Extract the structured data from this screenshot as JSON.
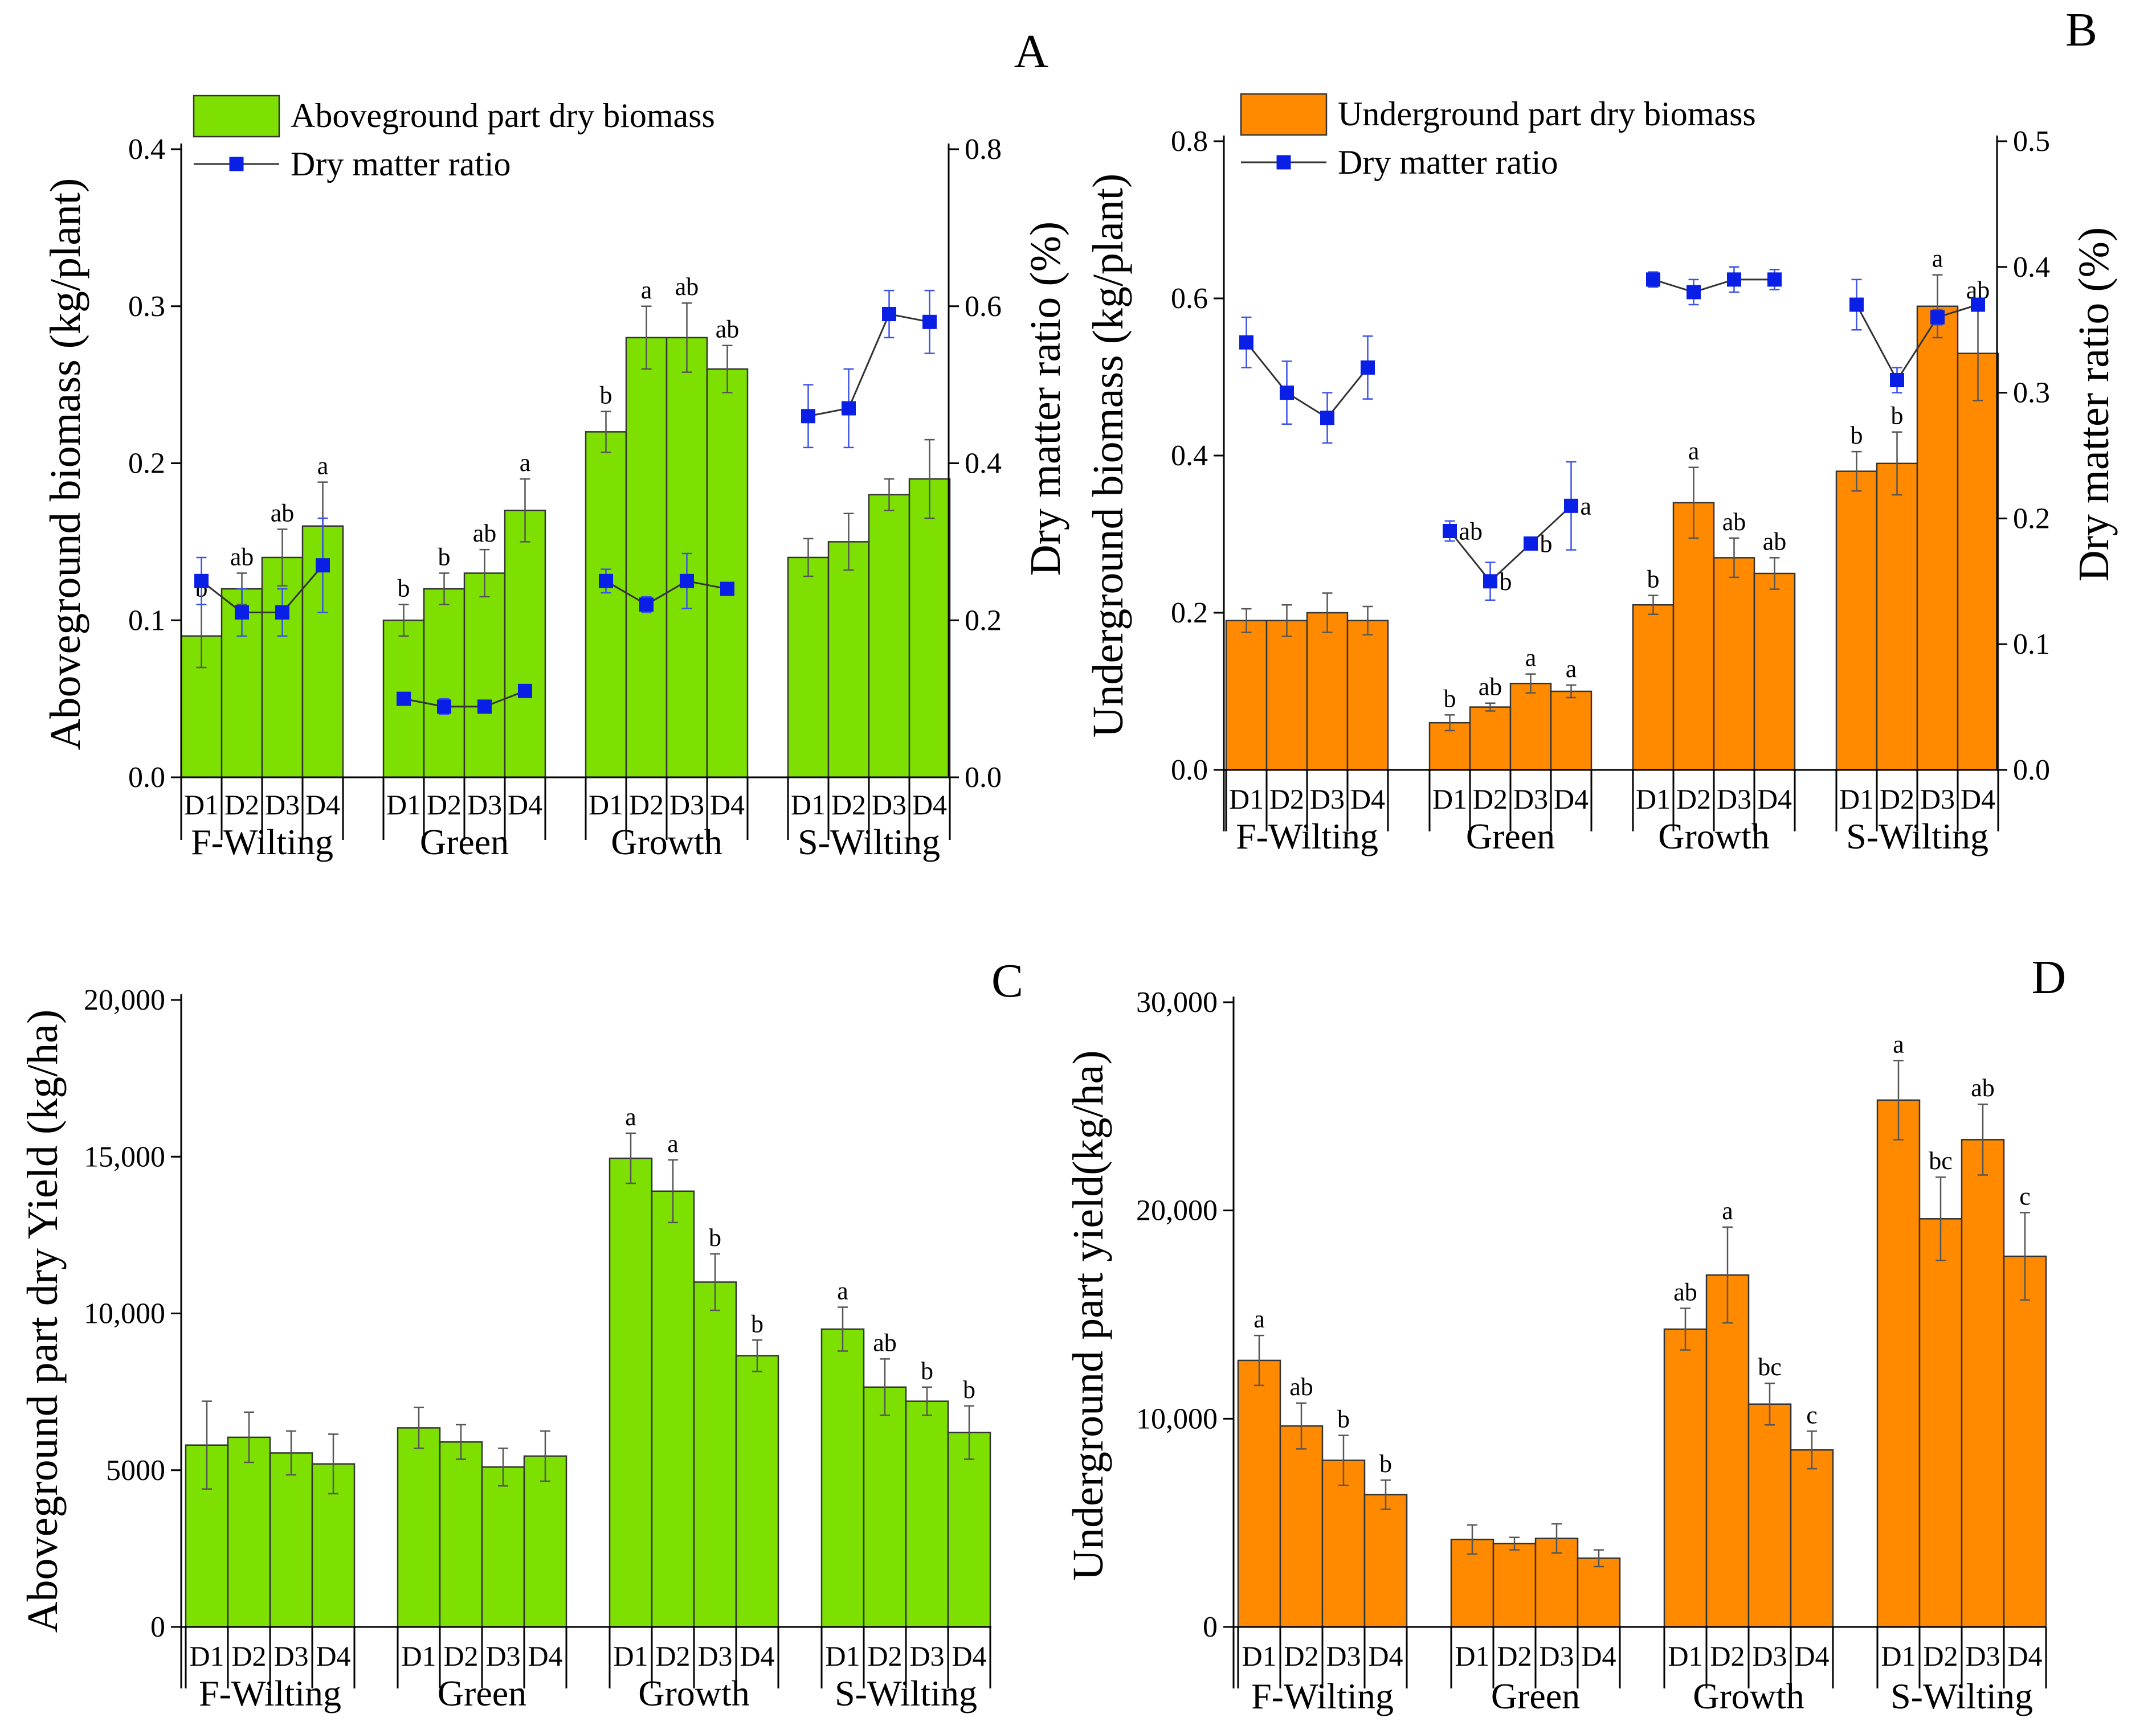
{
  "chart_data": [
    {
      "id": "A",
      "type": "bar",
      "panel_label": "A",
      "groups": [
        "F-Wilting",
        "Green",
        "Growth",
        "S-Wilting"
      ],
      "categories": [
        "D1",
        "D2",
        "D3",
        "D4"
      ],
      "bar_color": "#7ee000",
      "ylabel": "Aboveground biomass (kg/plant)",
      "y2label": "Dry matter ratio (%)",
      "ylim": [
        0,
        0.4
      ],
      "y_ticks": [
        0.0,
        0.1,
        0.2,
        0.3,
        0.4
      ],
      "y_tick_labels": [
        "0.0",
        "0.1",
        "0.2",
        "0.3",
        "0.4"
      ],
      "y2lim": [
        0,
        0.8
      ],
      "y2_ticks": [
        0.0,
        0.2,
        0.4,
        0.6,
        0.8
      ],
      "y2_tick_labels": [
        "0.0",
        "0.2",
        "0.4",
        "0.6",
        "0.8"
      ],
      "legend": {
        "bar": "Aboveground part dry biomass",
        "line": "Dry matter ratio"
      },
      "series": [
        {
          "name": "Aboveground part dry biomass",
          "values": [
            [
              0.09,
              0.12,
              0.14,
              0.16
            ],
            [
              0.1,
              0.12,
              0.13,
              0.17
            ],
            [
              0.22,
              0.28,
              0.28,
              0.26
            ],
            [
              0.14,
              0.15,
              0.18,
              0.19
            ]
          ],
          "errors": [
            [
              0.02,
              0.01,
              0.018,
              0.028
            ],
            [
              0.01,
              0.01,
              0.015,
              0.02
            ],
            [
              0.013,
              0.02,
              0.022,
              0.015
            ],
            [
              0.012,
              0.018,
              0.01,
              0.025
            ]
          ],
          "letters": [
            [
              "b",
              "ab",
              "ab",
              "a"
            ],
            [
              "b",
              "b",
              "ab",
              "a"
            ],
            [
              "b",
              "a",
              "ab",
              "ab"
            ],
            [
              "",
              "",
              "",
              ""
            ]
          ]
        },
        {
          "name": "Dry matter ratio",
          "axis": "right",
          "values": [
            [
              0.25,
              0.21,
              0.21,
              0.27
            ],
            [
              0.1,
              0.09,
              0.09,
              0.11
            ],
            [
              0.25,
              0.22,
              0.25,
              0.24
            ],
            [
              0.46,
              0.47,
              0.59,
              0.58
            ]
          ],
          "errors": [
            [
              0.03,
              0.03,
              0.03,
              0.06
            ],
            [
              0.005,
              0.01,
              0.005,
              0.005
            ],
            [
              0.015,
              0.01,
              0.035,
              0.005
            ],
            [
              0.04,
              0.05,
              0.03,
              0.04
            ]
          ],
          "letters": [
            [
              "",
              "",
              "",
              ""
            ],
            [
              "",
              "",
              "",
              ""
            ],
            [
              "",
              "",
              "",
              ""
            ],
            [
              "",
              "",
              "",
              ""
            ]
          ]
        }
      ]
    },
    {
      "id": "B",
      "type": "bar",
      "panel_label": "B",
      "groups": [
        "F-Wilting",
        "Green",
        "Growth",
        "S-Wilting"
      ],
      "categories": [
        "D1",
        "D2",
        "D3",
        "D4"
      ],
      "bar_color": "#ff8a00",
      "ylabel": "Underground biomass (kg/plant)",
      "y2label": "Dry matter ratio (%)",
      "ylim": [
        0,
        0.8
      ],
      "y_ticks": [
        0.0,
        0.2,
        0.4,
        0.6,
        0.8
      ],
      "y_tick_labels": [
        "0.0",
        "0.2",
        "0.4",
        "0.6",
        "0.8"
      ],
      "y2lim": [
        0,
        0.5
      ],
      "y2_ticks": [
        0.0,
        0.1,
        0.2,
        0.3,
        0.4,
        0.5
      ],
      "y2_tick_labels": [
        "0.0",
        "0.1",
        "0.2",
        "0.3",
        "0.4",
        "0.5"
      ],
      "legend": {
        "bar": "Underground part dry biomass",
        "line": "Dry matter ratio"
      },
      "series": [
        {
          "name": "Underground part dry biomass",
          "values": [
            [
              0.19,
              0.19,
              0.2,
              0.19
            ],
            [
              0.06,
              0.08,
              0.11,
              0.1
            ],
            [
              0.21,
              0.34,
              0.27,
              0.25
            ],
            [
              0.38,
              0.39,
              0.59,
              0.53
            ]
          ],
          "errors": [
            [
              0.015,
              0.02,
              0.025,
              0.018
            ],
            [
              0.01,
              0.005,
              0.012,
              0.008
            ],
            [
              0.012,
              0.045,
              0.025,
              0.02
            ],
            [
              0.025,
              0.04,
              0.04,
              0.06
            ]
          ],
          "letters": [
            [
              "",
              "",
              "",
              ""
            ],
            [
              "b",
              "ab",
              "a",
              "a"
            ],
            [
              "b",
              "a",
              "ab",
              "ab"
            ],
            [
              "b",
              "b",
              "a",
              "ab"
            ]
          ]
        },
        {
          "name": "Dry matter ratio",
          "axis": "right",
          "values": [
            [
              0.34,
              0.3,
              0.28,
              0.32
            ],
            [
              0.19,
              0.15,
              0.18,
              0.21
            ],
            [
              0.39,
              0.38,
              0.39,
              0.39
            ],
            [
              0.37,
              0.31,
              0.36,
              0.37
            ]
          ],
          "errors": [
            [
              0.02,
              0.025,
              0.02,
              0.025
            ],
            [
              0.008,
              0.015,
              0.005,
              0.035
            ],
            [
              0.006,
              0.01,
              0.01,
              0.008
            ],
            [
              0.02,
              0.01,
              0.006,
              0.004
            ]
          ],
          "letters": [
            [
              "",
              "",
              "",
              ""
            ],
            [
              "ab",
              "b",
              "b",
              "a"
            ],
            [
              "",
              "",
              "",
              ""
            ],
            [
              "",
              "",
              "",
              ""
            ]
          ]
        }
      ]
    },
    {
      "id": "C",
      "type": "bar",
      "panel_label": "C",
      "groups": [
        "F-Wilting",
        "Green",
        "Growth",
        "S-Wilting"
      ],
      "categories": [
        "D1",
        "D2",
        "D3",
        "D4"
      ],
      "bar_color": "#7ee000",
      "ylabel": "Aboveground part dry Yield (kg/ha)",
      "ylim": [
        0,
        20000
      ],
      "y_ticks": [
        0,
        5000,
        10000,
        15000,
        20000
      ],
      "y_tick_labels": [
        "0",
        "5000",
        "10,000",
        "15,000",
        "20,000"
      ],
      "series": [
        {
          "name": "Aboveground part dry Yield",
          "values": [
            [
              5800,
              6050,
              5550,
              5200
            ],
            [
              6350,
              5900,
              5100,
              5450
            ],
            [
              14950,
              13900,
              11000,
              8650
            ],
            [
              9500,
              7650,
              7200,
              6200
            ]
          ],
          "errors": [
            [
              1400,
              800,
              700,
              950
            ],
            [
              650,
              550,
              600,
              800
            ],
            [
              800,
              1000,
              900,
              500
            ],
            [
              700,
              900,
              450,
              850
            ]
          ],
          "letters": [
            [
              "",
              "",
              "",
              ""
            ],
            [
              "",
              "",
              "",
              ""
            ],
            [
              "a",
              "a",
              "b",
              "b"
            ],
            [
              "a",
              "ab",
              "b",
              "b"
            ]
          ]
        }
      ]
    },
    {
      "id": "D",
      "type": "bar",
      "panel_label": "D",
      "groups": [
        "F-Wilting",
        "Green",
        "Growth",
        "S-Wilting"
      ],
      "categories": [
        "D1",
        "D2",
        "D3",
        "D4"
      ],
      "bar_color": "#ff8a00",
      "ylabel": "Underground part yield(kg/ha)",
      "ylim": [
        0,
        30000
      ],
      "y_ticks": [
        0,
        10000,
        20000,
        30000
      ],
      "y_tick_labels": [
        "0",
        "10,000",
        "20,000",
        "30,000"
      ],
      "series": [
        {
          "name": "Underground part yield",
          "values": [
            [
              12800,
              9650,
              8000,
              6350
            ],
            [
              4200,
              4000,
              4250,
              3300
            ],
            [
              14300,
              16900,
              10700,
              8500
            ],
            [
              25300,
              19600,
              23400,
              17800
            ]
          ],
          "errors": [
            [
              1200,
              1100,
              1200,
              700
            ],
            [
              700,
              300,
              700,
              400
            ],
            [
              1000,
              2300,
              1000,
              900
            ],
            [
              1900,
              2000,
              1700,
              2100
            ]
          ],
          "letters": [
            [
              "a",
              "ab",
              "b",
              "b"
            ],
            [
              "",
              "",
              "",
              ""
            ],
            [
              "ab",
              "a",
              "bc",
              "c"
            ],
            [
              "a",
              "bc",
              "ab",
              "c"
            ]
          ]
        }
      ]
    }
  ]
}
